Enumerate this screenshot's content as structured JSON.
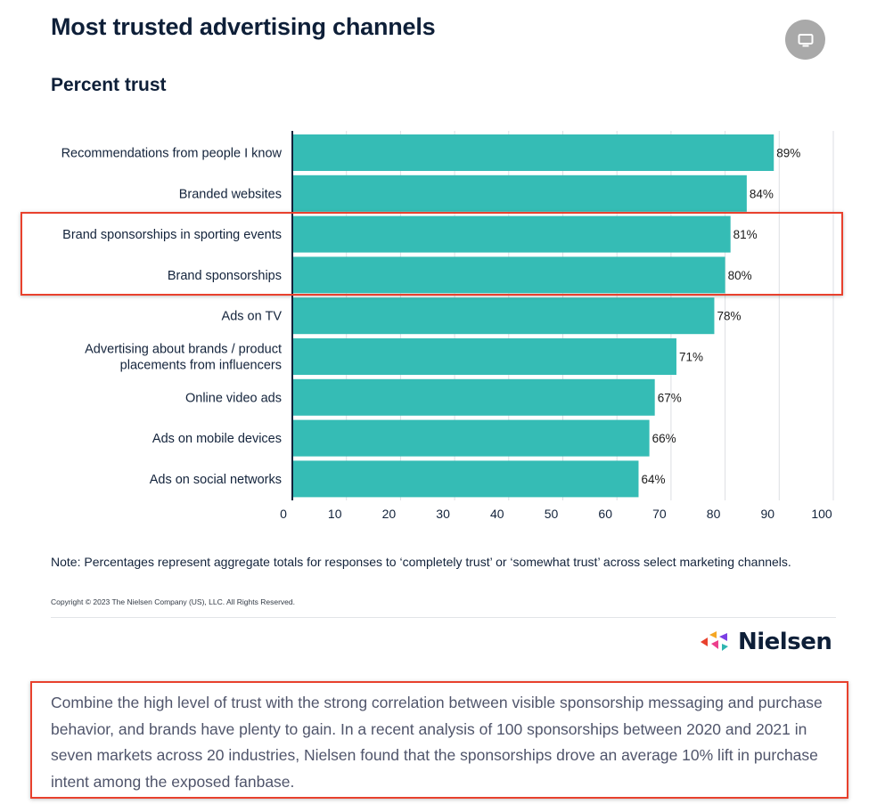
{
  "title": "Most trusted advertising channels",
  "subtitle": "Percent trust",
  "icons": {
    "screen_button": "monitor-icon"
  },
  "colors": {
    "bar": "#35bcb5",
    "highlight": "#e8412d",
    "title": "#0e1f38"
  },
  "chart_data": {
    "type": "bar",
    "orientation": "horizontal",
    "categories": [
      "Recommendations from people I know",
      "Branded websites",
      "Brand sponsorships in sporting events",
      "Brand sponsorships",
      "Ads on TV",
      "Advertising about brands / product placements from influencers",
      "Online video ads",
      "Ads on mobile devices",
      "Ads on social networks"
    ],
    "category_lines": [
      [
        "Recommendations from people I know"
      ],
      [
        "Branded websites"
      ],
      [
        "Brand sponsorships in sporting events"
      ],
      [
        "Brand sponsorships"
      ],
      [
        "Ads on TV"
      ],
      [
        "Advertising about brands / product",
        "placements from influencers"
      ],
      [
        "Online video ads"
      ],
      [
        "Ads on mobile devices"
      ],
      [
        "Ads on social networks"
      ]
    ],
    "values": [
      89,
      84,
      81,
      80,
      78,
      71,
      67,
      66,
      64
    ],
    "data_labels": [
      "89%",
      "84%",
      "81%",
      "80%",
      "78%",
      "71%",
      "67%",
      "66%",
      "64%"
    ],
    "xlim": [
      0,
      100
    ],
    "xticks": [
      0,
      10,
      20,
      30,
      40,
      50,
      60,
      70,
      80,
      90,
      100
    ],
    "grid": true,
    "highlighted_categories": [
      "Brand sponsorships in sporting events",
      "Brand sponsorships"
    ]
  },
  "note": "Note: Percentages represent aggregate totals for responses to ‘completely trust’ or ‘somewhat trust’ across select marketing channels.",
  "copyright": "Copyright © 2023 The Nielsen Company (US), LLC. All Rights Reserved.",
  "logo": {
    "word": "Nielsen"
  },
  "body_text": "Combine the high level of trust with the strong correlation between visible sponsorship messaging and purchase behavior, and brands have plenty to gain. In a recent analysis of 100 sponsorships between 2020 and 2021 in seven markets across 20 industries, Nielsen found that the sponsorships drove an average 10% lift in purchase intent among the exposed fanbase."
}
